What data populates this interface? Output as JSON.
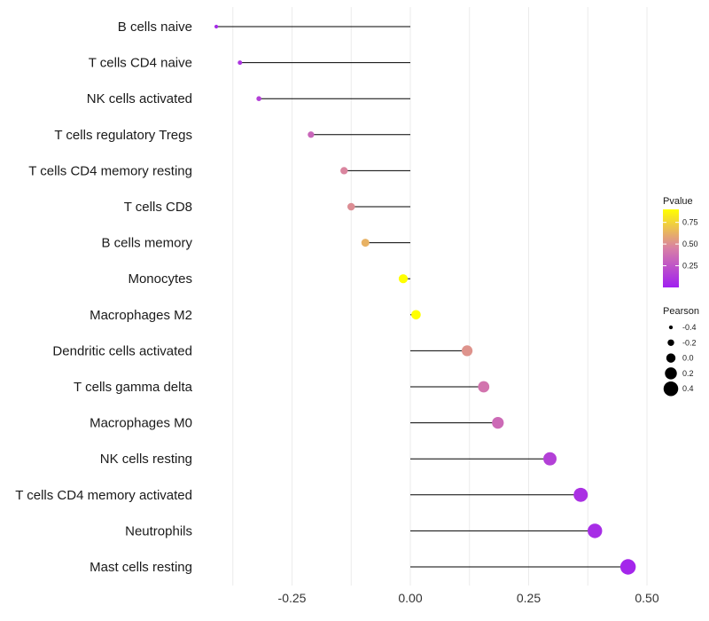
{
  "chart_data": {
    "type": "lollipop",
    "title": "",
    "xlabel": "",
    "ylabel": "",
    "xlim": [
      -0.45,
      0.55
    ],
    "x_ticks": [
      -0.25,
      0.0,
      0.25,
      0.5
    ],
    "x_tick_labels": [
      "-0.25",
      "0.00",
      "0.25",
      "0.50"
    ],
    "grid": true,
    "points": [
      {
        "label": "B cells naive",
        "pearson": -0.41,
        "pvalue": 0.05
      },
      {
        "label": "T cells CD4 naive",
        "pearson": -0.36,
        "pvalue": 0.1
      },
      {
        "label": "NK cells activated",
        "pearson": -0.32,
        "pvalue": 0.15
      },
      {
        "label": "T cells regulatory  Tregs ",
        "pearson": -0.21,
        "pvalue": 0.33
      },
      {
        "label": "T cells CD4 memory resting",
        "pearson": -0.14,
        "pvalue": 0.47
      },
      {
        "label": "T cells CD8",
        "pearson": -0.125,
        "pvalue": 0.5
      },
      {
        "label": "B cells memory",
        "pearson": -0.095,
        "pvalue": 0.63
      },
      {
        "label": "Monocytes",
        "pearson": -0.015,
        "pvalue": 0.95
      },
      {
        "label": "Macrophages M2",
        "pearson": 0.012,
        "pvalue": 0.96
      },
      {
        "label": "Dendritic cells activated",
        "pearson": 0.12,
        "pvalue": 0.52
      },
      {
        "label": "T cells gamma delta",
        "pearson": 0.155,
        "pvalue": 0.4
      },
      {
        "label": "Macrophages M0",
        "pearson": 0.185,
        "pvalue": 0.35
      },
      {
        "label": "NK cells resting",
        "pearson": 0.295,
        "pvalue": 0.15
      },
      {
        "label": "T cells CD4 memory activated",
        "pearson": 0.36,
        "pvalue": 0.08
      },
      {
        "label": "Neutrophils",
        "pearson": 0.39,
        "pvalue": 0.06
      },
      {
        "label": "Mast cells resting",
        "pearson": 0.46,
        "pvalue": 0.03
      }
    ],
    "legend_color": {
      "title": "Pvalue",
      "position": "right",
      "range": [
        0.0,
        0.9
      ],
      "low_color": "#a020f0",
      "mid_color": "#d87fa6",
      "high_color": "#ffff00",
      "ticks": [
        0.25,
        0.5,
        0.75
      ],
      "tick_labels": [
        "0.25",
        "0.50",
        "0.75"
      ]
    },
    "legend_size": {
      "title": "Pearson",
      "position": "right",
      "values": [
        -0.4,
        -0.2,
        0.0,
        0.2,
        0.4
      ],
      "labels": [
        "-0.4",
        "-0.2",
        "0.0",
        "0.2",
        "0.4"
      ]
    }
  }
}
